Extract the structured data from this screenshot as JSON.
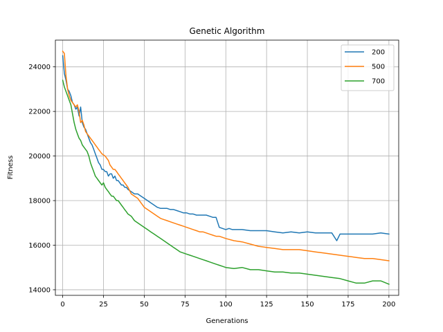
{
  "chart_data": {
    "type": "line",
    "title": "Genetic Algorithm",
    "xlabel": "Generations",
    "ylabel": "Fitness",
    "xlim": [
      -4.5,
      206
    ],
    "ylim": [
      13750,
      25200
    ],
    "xticks": [
      0,
      25,
      50,
      75,
      100,
      125,
      150,
      175,
      200
    ],
    "yticks": [
      14000,
      16000,
      18000,
      20000,
      22000,
      24000
    ],
    "grid": true,
    "legend_position": "top-right",
    "series": [
      {
        "name": "200",
        "color": "#1f77b4",
        "x": [
          0,
          1,
          2,
          3,
          4,
          5,
          6,
          7,
          8,
          9,
          10,
          11,
          12,
          13,
          14,
          15,
          16,
          17,
          18,
          19,
          20,
          21,
          22,
          23,
          24,
          25,
          26,
          27,
          28,
          29,
          30,
          31,
          32,
          33,
          34,
          35,
          36,
          37,
          38,
          39,
          40,
          42,
          44,
          46,
          48,
          50,
          52,
          54,
          56,
          58,
          60,
          62,
          64,
          66,
          68,
          70,
          72,
          74,
          76,
          78,
          80,
          82,
          84,
          86,
          88,
          90,
          92,
          94,
          96,
          98,
          100,
          102,
          104,
          106,
          108,
          110,
          115,
          120,
          125,
          130,
          135,
          140,
          145,
          150,
          155,
          160,
          165,
          168,
          170,
          175,
          180,
          185,
          190,
          195,
          200
        ],
        "values": [
          24500,
          23700,
          23400,
          23000,
          22900,
          22700,
          22400,
          22300,
          22100,
          22200,
          21800,
          22200,
          21500,
          21300,
          21200,
          21000,
          20800,
          20600,
          20500,
          20300,
          20100,
          19900,
          19700,
          19600,
          19400,
          19400,
          19300,
          19300,
          19100,
          19200,
          19200,
          19000,
          19100,
          18900,
          18900,
          18800,
          18700,
          18700,
          18600,
          18600,
          18500,
          18400,
          18300,
          18300,
          18200,
          18100,
          18000,
          17900,
          17800,
          17700,
          17650,
          17650,
          17650,
          17600,
          17600,
          17550,
          17500,
          17450,
          17450,
          17400,
          17400,
          17350,
          17350,
          17350,
          17350,
          17300,
          17250,
          17250,
          16800,
          16750,
          16700,
          16750,
          16700,
          16700,
          16700,
          16700,
          16650,
          16650,
          16650,
          16600,
          16550,
          16600,
          16550,
          16600,
          16550,
          16550,
          16550,
          16200,
          16500,
          16500,
          16500,
          16500,
          16500,
          16550,
          16500
        ]
      },
      {
        "name": "500",
        "color": "#ff7f0e",
        "x": [
          0,
          1,
          2,
          3,
          4,
          5,
          6,
          7,
          8,
          9,
          10,
          11,
          12,
          13,
          14,
          15,
          16,
          17,
          18,
          19,
          20,
          21,
          22,
          23,
          24,
          25,
          26,
          27,
          28,
          29,
          30,
          31,
          32,
          33,
          34,
          35,
          36,
          37,
          38,
          39,
          40,
          42,
          44,
          46,
          48,
          50,
          52,
          54,
          56,
          58,
          60,
          62,
          64,
          66,
          68,
          70,
          72,
          74,
          76,
          78,
          80,
          82,
          84,
          86,
          88,
          90,
          92,
          94,
          96,
          98,
          100,
          105,
          110,
          115,
          120,
          125,
          130,
          135,
          140,
          145,
          150,
          155,
          160,
          165,
          170,
          175,
          180,
          185,
          190,
          195,
          200
        ],
        "values": [
          24700,
          24600,
          23600,
          23000,
          22700,
          22500,
          22400,
          22300,
          22200,
          22300,
          22000,
          21500,
          21600,
          21400,
          21100,
          21000,
          20900,
          20800,
          20700,
          20600,
          20500,
          20400,
          20300,
          20200,
          20100,
          20050,
          20000,
          19900,
          19800,
          19600,
          19500,
          19400,
          19400,
          19300,
          19200,
          19100,
          19000,
          18900,
          18800,
          18700,
          18600,
          18300,
          18200,
          18100,
          17900,
          17700,
          17600,
          17500,
          17400,
          17300,
          17200,
          17150,
          17100,
          17050,
          17000,
          16950,
          16900,
          16850,
          16800,
          16750,
          16700,
          16650,
          16600,
          16600,
          16550,
          16500,
          16450,
          16400,
          16400,
          16350,
          16300,
          16200,
          16150,
          16050,
          15950,
          15900,
          15850,
          15800,
          15800,
          15800,
          15750,
          15700,
          15650,
          15600,
          15550,
          15500,
          15450,
          15400,
          15400,
          15350,
          15300
        ]
      },
      {
        "name": "700",
        "color": "#2ca02c",
        "x": [
          0,
          1,
          2,
          3,
          4,
          5,
          6,
          7,
          8,
          9,
          10,
          11,
          12,
          13,
          14,
          15,
          16,
          17,
          18,
          19,
          20,
          21,
          22,
          23,
          24,
          25,
          26,
          27,
          28,
          29,
          30,
          31,
          32,
          33,
          34,
          35,
          36,
          37,
          38,
          39,
          40,
          42,
          44,
          46,
          48,
          50,
          52,
          54,
          56,
          58,
          60,
          62,
          64,
          66,
          68,
          70,
          72,
          74,
          76,
          78,
          80,
          82,
          84,
          86,
          88,
          90,
          92,
          94,
          96,
          98,
          100,
          105,
          110,
          115,
          120,
          125,
          130,
          135,
          140,
          145,
          150,
          155,
          160,
          165,
          170,
          175,
          180,
          185,
          190,
          195,
          200
        ],
        "values": [
          23400,
          23100,
          22900,
          22700,
          22500,
          22300,
          21900,
          21500,
          21200,
          21000,
          20800,
          20700,
          20500,
          20400,
          20300,
          20200,
          20000,
          19700,
          19500,
          19300,
          19100,
          19000,
          18900,
          18800,
          18700,
          18800,
          18600,
          18500,
          18400,
          18300,
          18200,
          18200,
          18100,
          18000,
          18000,
          17900,
          17800,
          17700,
          17600,
          17500,
          17400,
          17300,
          17100,
          17000,
          16900,
          16800,
          16700,
          16600,
          16500,
          16400,
          16300,
          16200,
          16100,
          16000,
          15900,
          15800,
          15700,
          15650,
          15600,
          15550,
          15500,
          15450,
          15400,
          15350,
          15300,
          15250,
          15200,
          15150,
          15100,
          15050,
          15000,
          14950,
          15000,
          14900,
          14900,
          14850,
          14800,
          14800,
          14750,
          14750,
          14700,
          14650,
          14600,
          14550,
          14500,
          14400,
          14300,
          14300,
          14400,
          14400,
          14250
        ]
      }
    ]
  }
}
